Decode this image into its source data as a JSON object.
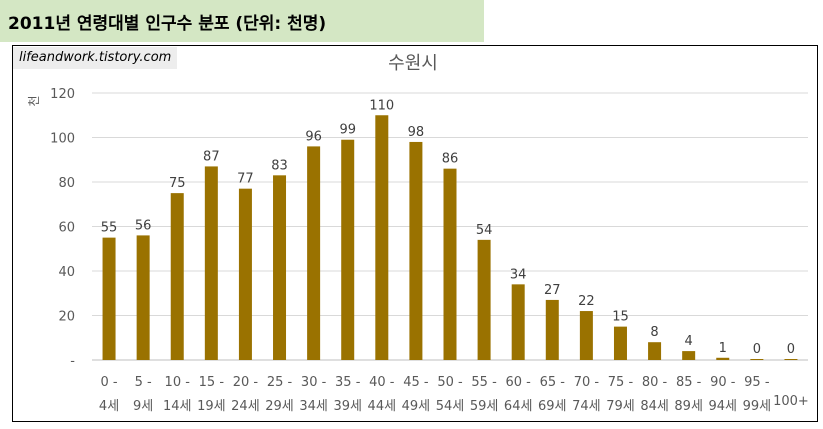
{
  "header": {
    "title": "2011년 연령대별 인구수 분포 (단위: 천명)"
  },
  "watermark": "lifeandwork.tistory.com",
  "chart_data": {
    "type": "bar",
    "title": "수원시",
    "ylabel": "천",
    "ylim": [
      0,
      120
    ],
    "yticks": [
      "-",
      "20",
      "40",
      "60",
      "80",
      "100",
      "120"
    ],
    "bar_color": "#9a7200",
    "grid": true,
    "categories": [
      {
        "top": "0 -",
        "bottom": "4세"
      },
      {
        "top": "5 -",
        "bottom": "9세"
      },
      {
        "top": "10 -",
        "bottom": "14세"
      },
      {
        "top": "15 -",
        "bottom": "19세"
      },
      {
        "top": "20 -",
        "bottom": "24세"
      },
      {
        "top": "25 -",
        "bottom": "29세"
      },
      {
        "top": "30 -",
        "bottom": "34세"
      },
      {
        "top": "35 -",
        "bottom": "39세"
      },
      {
        "top": "40 -",
        "bottom": "44세"
      },
      {
        "top": "45 -",
        "bottom": "49세"
      },
      {
        "top": "50 -",
        "bottom": "54세"
      },
      {
        "top": "55 -",
        "bottom": "59세"
      },
      {
        "top": "60 -",
        "bottom": "64세"
      },
      {
        "top": "65 -",
        "bottom": "69세"
      },
      {
        "top": "70 -",
        "bottom": "74세"
      },
      {
        "top": "75 -",
        "bottom": "79세"
      },
      {
        "top": "80 -",
        "bottom": "84세"
      },
      {
        "top": "85 -",
        "bottom": "89세"
      },
      {
        "top": "90 -",
        "bottom": "94세"
      },
      {
        "top": "95 -",
        "bottom": "99세"
      },
      {
        "top": "",
        "bottom": "100+"
      }
    ],
    "values": [
      55,
      56,
      75,
      87,
      77,
      83,
      96,
      99,
      110,
      98,
      86,
      54,
      34,
      27,
      22,
      15,
      8,
      4,
      1,
      0,
      0
    ],
    "data_labels": [
      "55",
      "56",
      "75",
      "87",
      "77",
      "83",
      "96",
      "99",
      "110",
      "98",
      "86",
      "54",
      "34",
      "27",
      "22",
      "15",
      "8",
      "4",
      "1",
      "0",
      "0"
    ]
  }
}
